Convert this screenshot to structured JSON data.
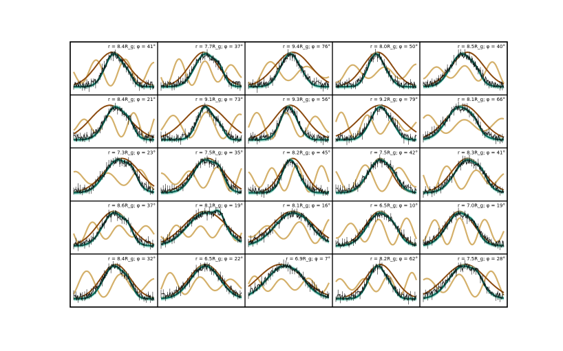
{
  "figure": {
    "rows": 5,
    "cols": 5
  },
  "colors": {
    "data": "#111111",
    "model_teal": "#0b6b5c",
    "model_band": "#7fd3c0",
    "model_brown": "#8b4a0f",
    "model_gold": "#d4b06a"
  },
  "chart_data": {
    "type": "line",
    "xlabel": "",
    "ylabel": "",
    "grid": false,
    "panels": [
      {
        "label": "r = 8.4R_g; φ = 41°",
        "r": 8.4,
        "phi": 41,
        "peak": 0.5,
        "width": 0.11,
        "brown_peak": 0.48,
        "brown_width": 0.2
      },
      {
        "label": "r = 7.7R_g; φ = 37°",
        "r": 7.7,
        "phi": 37,
        "peak": 0.55,
        "width": 0.13,
        "brown_peak": 0.53,
        "brown_width": 0.18
      },
      {
        "label": "r = 9.4R_g; φ = 76°",
        "r": 9.4,
        "phi": 76,
        "peak": 0.52,
        "width": 0.12,
        "brown_peak": 0.55,
        "brown_width": 0.22
      },
      {
        "label": "r = 8.0R_g; φ = 50°",
        "r": 8.0,
        "phi": 50,
        "peak": 0.5,
        "width": 0.1,
        "brown_peak": 0.52,
        "brown_width": 0.18
      },
      {
        "label": "r = 8.5R_g; φ = 40°",
        "r": 8.5,
        "phi": 40,
        "peak": 0.48,
        "width": 0.14,
        "brown_peak": 0.55,
        "brown_width": 0.2
      },
      {
        "label": "r = 8.4R_g; φ = 21°",
        "r": 8.4,
        "phi": 21,
        "peak": 0.52,
        "width": 0.13,
        "brown_peak": 0.45,
        "brown_width": 0.24
      },
      {
        "label": "r = 9.1R_g; φ = 73°",
        "r": 9.1,
        "phi": 73,
        "peak": 0.55,
        "width": 0.1,
        "brown_peak": 0.55,
        "brown_width": 0.25
      },
      {
        "label": "r = 9.3R_g; φ = 56°",
        "r": 9.3,
        "phi": 56,
        "peak": 0.5,
        "width": 0.1,
        "brown_peak": 0.52,
        "brown_width": 0.2
      },
      {
        "label": "r = 9.2R_g; φ = 79°",
        "r": 9.2,
        "phi": 79,
        "peak": 0.55,
        "width": 0.12,
        "brown_peak": 0.55,
        "brown_width": 0.26
      },
      {
        "label": "r = 8.1R_g; φ = 66°",
        "r": 8.1,
        "phi": 66,
        "peak": 0.45,
        "width": 0.16,
        "brown_peak": 0.5,
        "brown_width": 0.22
      },
      {
        "label": "r = 7.3R_g; φ = 23°",
        "r": 7.3,
        "phi": 23,
        "peak": 0.55,
        "width": 0.16,
        "brown_peak": 0.6,
        "brown_width": 0.22
      },
      {
        "label": "r = 7.5R_g; φ = 35°",
        "r": 7.5,
        "phi": 35,
        "peak": 0.55,
        "width": 0.15,
        "brown_peak": 0.58,
        "brown_width": 0.2
      },
      {
        "label": "r = 8.2R_g; φ = 45°",
        "r": 8.2,
        "phi": 45,
        "peak": 0.52,
        "width": 0.1,
        "brown_peak": 0.55,
        "brown_width": 0.15
      },
      {
        "label": "r = 7.5R_g; φ = 42°",
        "r": 7.5,
        "phi": 42,
        "peak": 0.55,
        "width": 0.15,
        "brown_peak": 0.55,
        "brown_width": 0.14
      },
      {
        "label": "r = 8.3R_g; φ = 41°",
        "r": 8.3,
        "phi": 41,
        "peak": 0.55,
        "width": 0.16,
        "brown_peak": 0.55,
        "brown_width": 0.2
      },
      {
        "label": "r = 8.6R_g; φ = 37°",
        "r": 8.6,
        "phi": 37,
        "peak": 0.5,
        "width": 0.14,
        "brown_peak": 0.5,
        "brown_width": 0.2
      },
      {
        "label": "r = 8.1R_g; φ = 19°",
        "r": 8.1,
        "phi": 19,
        "peak": 0.55,
        "width": 0.22,
        "brown_peak": 0.55,
        "brown_width": 0.26
      },
      {
        "label": "r = 8.1R_g; φ = 16°",
        "r": 8.1,
        "phi": 16,
        "peak": 0.55,
        "width": 0.22,
        "brown_peak": 0.55,
        "brown_width": 0.26
      },
      {
        "label": "r = 6.5R_g; φ = 10°",
        "r": 6.5,
        "phi": 10,
        "peak": 0.55,
        "width": 0.16,
        "brown_peak": 0.55,
        "brown_width": 0.18
      },
      {
        "label": "r = 7.0R_g; φ = 19°",
        "r": 7.0,
        "phi": 19,
        "peak": 0.45,
        "width": 0.16,
        "brown_peak": 0.45,
        "brown_width": 0.18
      },
      {
        "label": "r = 8.4R_g; φ = 32°",
        "r": 8.4,
        "phi": 32,
        "peak": 0.5,
        "width": 0.13,
        "brown_peak": 0.52,
        "brown_width": 0.18
      },
      {
        "label": "r = 6.5R_g; φ = 22°",
        "r": 6.5,
        "phi": 22,
        "peak": 0.55,
        "width": 0.18,
        "brown_peak": 0.55,
        "brown_width": 0.2
      },
      {
        "label": "r = 6.9R_g; φ = 7°",
        "r": 6.9,
        "phi": 7,
        "peak": 0.45,
        "width": 0.22,
        "brown_peak": 0.4,
        "brown_width": 0.28
      },
      {
        "label": "r = 8.2R_g; φ = 62°",
        "r": 8.2,
        "phi": 62,
        "peak": 0.52,
        "width": 0.11,
        "brown_peak": 0.55,
        "brown_width": 0.18
      },
      {
        "label": "r = 7.5R_g; φ = 28°",
        "r": 7.5,
        "phi": 28,
        "peak": 0.5,
        "width": 0.18,
        "brown_peak": 0.52,
        "brown_width": 0.26
      }
    ]
  }
}
